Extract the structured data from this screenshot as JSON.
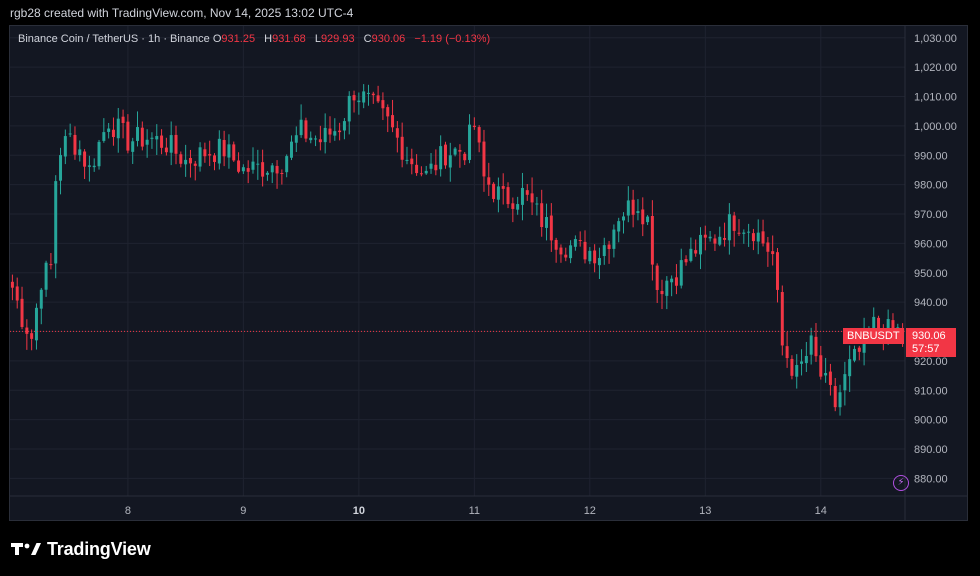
{
  "credit": "rgb28 created with TradingView.com, Nov 14, 2025 13:02 UTC-4",
  "legend": {
    "symbol": "Binance Coin / TetherUS · 1h · Binance",
    "o_label": "O",
    "o_value": "931.25",
    "h_label": "H",
    "h_value": "931.68",
    "l_label": "L",
    "l_value": "929.93",
    "c_label": "C",
    "c_value": "930.06",
    "change": "−1.19 (−0.13%)"
  },
  "price_tag": {
    "symbol": "BNBUSDT",
    "price": "930.06",
    "countdown": "57:57"
  },
  "brand": {
    "name": "TradingView"
  },
  "colors": {
    "up": "#26a69a",
    "down": "#f23645",
    "background": "#131722",
    "grid": "#1f2330"
  },
  "icons": {
    "flash": "flash-icon",
    "logo": "tradingview-logo-icon"
  },
  "chart_data": {
    "type": "candlestick",
    "interval": "1h",
    "last_price": 930.06,
    "ylim": [
      874,
      1034
    ],
    "y_ticks": [
      880,
      890,
      900,
      910,
      920,
      930,
      940,
      950,
      960,
      970,
      980,
      990,
      1000,
      1010,
      1020,
      1030
    ],
    "y_tick_labels": [
      "880.00",
      "890.00",
      "900.00",
      "910.00",
      "920.00",
      "930.00",
      "940.00",
      "950.00",
      "960.00",
      "970.00",
      "980.00",
      "990.00",
      "1,000.00",
      "1,010.00",
      "1,020.00",
      "1,030.00"
    ],
    "x_ticks": [
      {
        "label": "8",
        "index": 24
      },
      {
        "label": "9",
        "index": 48
      },
      {
        "label": "10",
        "index": 72,
        "bold": true
      },
      {
        "label": "11",
        "index": 96
      },
      {
        "label": "12",
        "index": 120
      },
      {
        "label": "13",
        "index": 144
      },
      {
        "label": "14",
        "index": 168
      }
    ],
    "x_range": [
      -0.5,
      185.5
    ],
    "close_path": [
      [
        0,
        945
      ],
      [
        2,
        935
      ],
      [
        4,
        928
      ],
      [
        6,
        948
      ],
      [
        8,
        952
      ],
      [
        9,
        982
      ],
      [
        10,
        992
      ],
      [
        12,
        996
      ],
      [
        14,
        992
      ],
      [
        16,
        985
      ],
      [
        18,
        994
      ],
      [
        20,
        1002
      ],
      [
        24,
        995
      ],
      [
        28,
        996
      ],
      [
        32,
        994
      ],
      [
        36,
        988
      ],
      [
        40,
        991
      ],
      [
        44,
        992
      ],
      [
        48,
        985
      ],
      [
        52,
        986
      ],
      [
        56,
        988
      ],
      [
        60,
        998
      ],
      [
        64,
        995
      ],
      [
        68,
        1000
      ],
      [
        71,
        1012
      ],
      [
        74,
        1008
      ],
      [
        78,
        1001
      ],
      [
        82,
        990
      ],
      [
        86,
        983
      ],
      [
        90,
        991
      ],
      [
        94,
        992
      ],
      [
        96,
        1000
      ],
      [
        98,
        982
      ],
      [
        102,
        975
      ],
      [
        106,
        977
      ],
      [
        110,
        968
      ],
      [
        114,
        960
      ],
      [
        118,
        958
      ],
      [
        122,
        957
      ],
      [
        124,
        962
      ],
      [
        126,
        970
      ],
      [
        130,
        974
      ],
      [
        132,
        968
      ],
      [
        134,
        945
      ],
      [
        138,
        950
      ],
      [
        142,
        958
      ],
      [
        146,
        962
      ],
      [
        150,
        968
      ],
      [
        154,
        965
      ],
      [
        158,
        956
      ],
      [
        160,
        925
      ],
      [
        163,
        915
      ],
      [
        166,
        925
      ],
      [
        168,
        915
      ],
      [
        171,
        905
      ],
      [
        174,
        918
      ],
      [
        177,
        925
      ],
      [
        179,
        932
      ],
      [
        182,
        930
      ],
      [
        185,
        930.06
      ]
    ]
  }
}
